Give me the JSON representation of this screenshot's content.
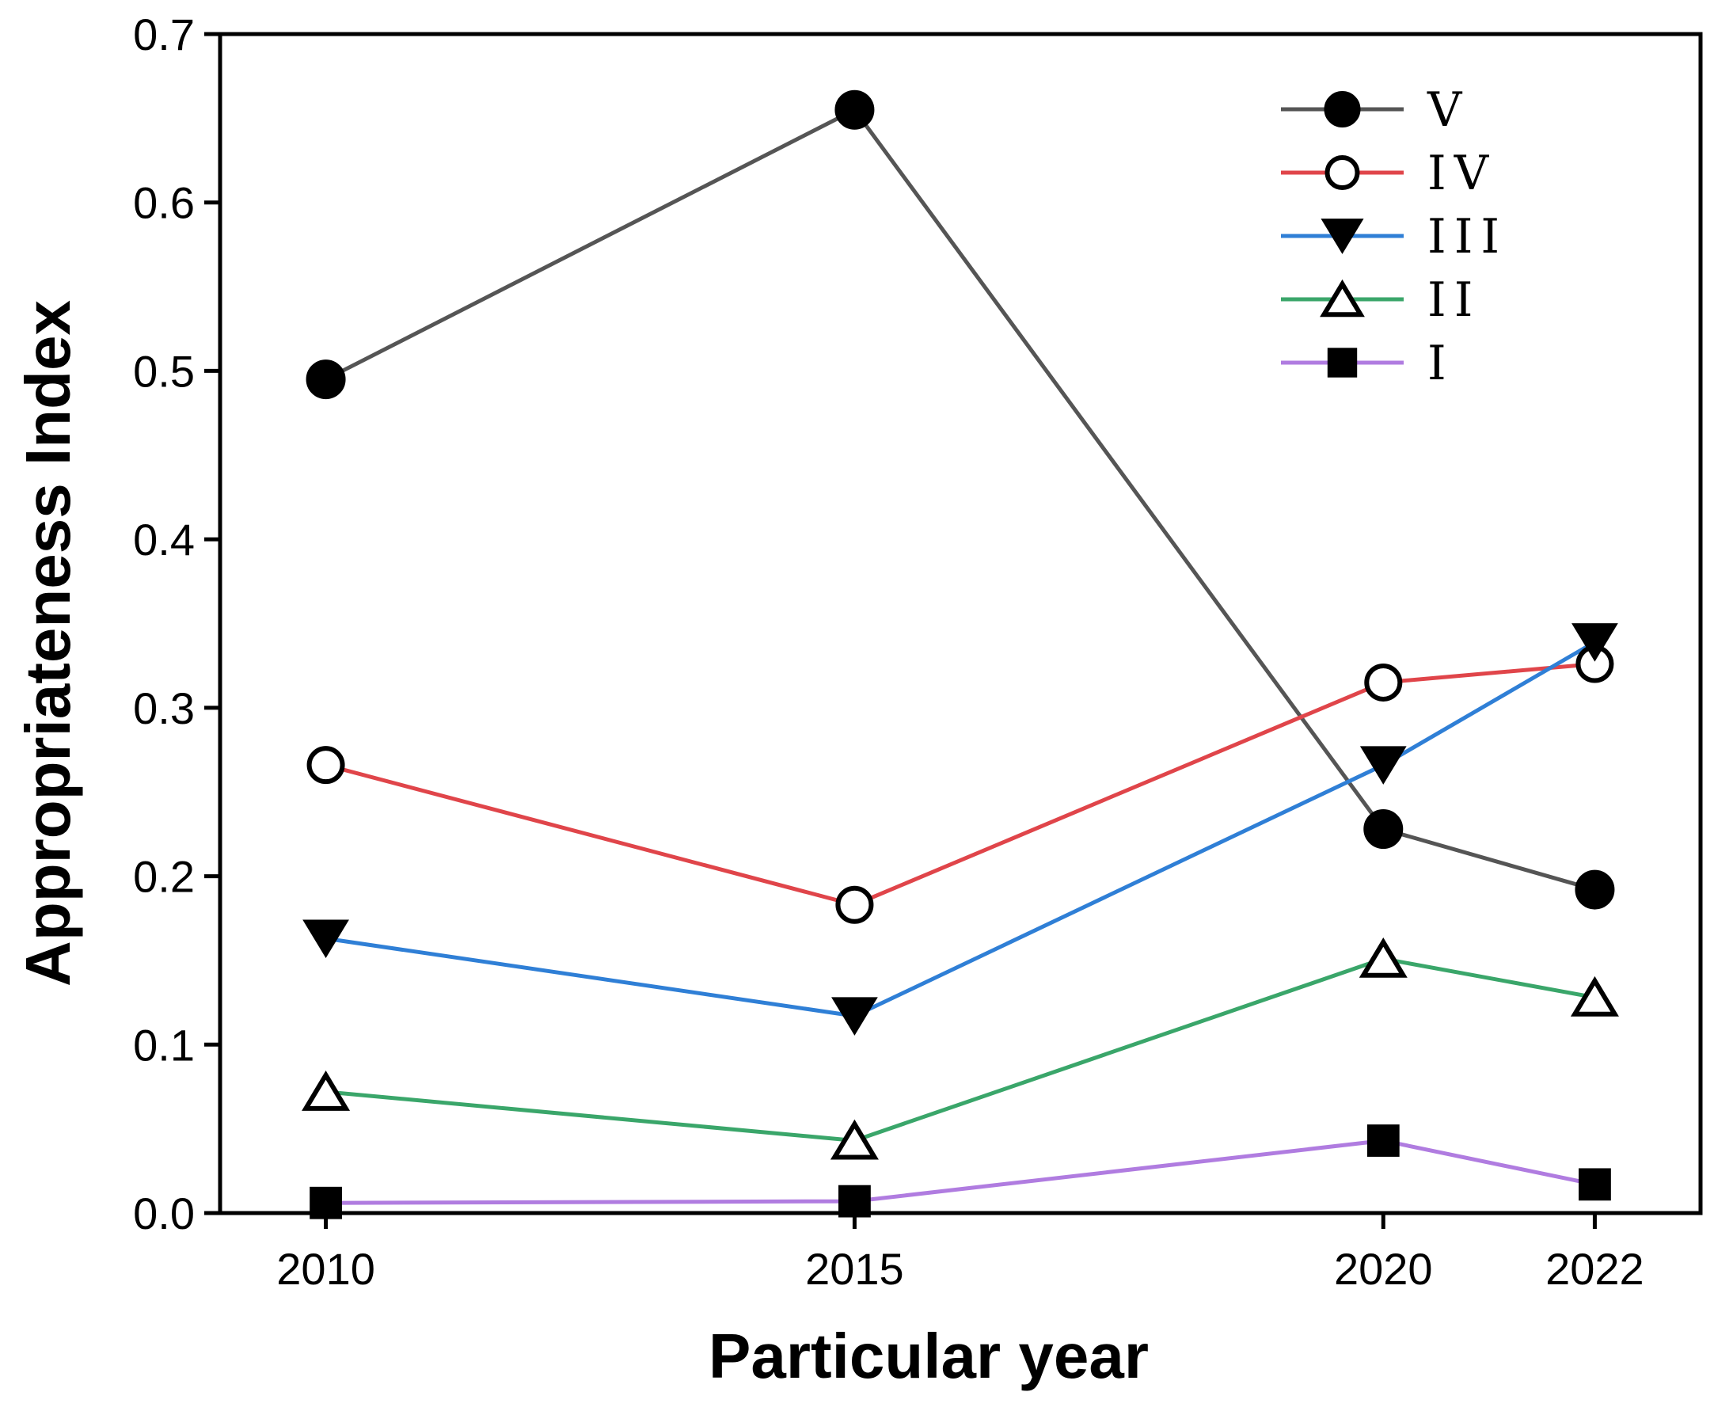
{
  "chart_data": {
    "type": "line",
    "title": "",
    "xlabel": "Particular year",
    "ylabel": "Appropriateness Index",
    "x": [
      2010,
      2015,
      2020,
      2022
    ],
    "x_tick_labels": [
      "2010",
      "2015",
      "2020",
      "2022"
    ],
    "xlim": [
      2009,
      2023
    ],
    "ylim": [
      0,
      0.7
    ],
    "y_ticks": [
      0.0,
      0.1,
      0.2,
      0.3,
      0.4,
      0.5,
      0.6,
      0.7
    ],
    "y_tick_labels": [
      "0.0",
      "0.1",
      "0.2",
      "0.3",
      "0.4",
      "0.5",
      "0.6",
      "0.7"
    ],
    "grid": false,
    "legend_position": "top-right",
    "series": [
      {
        "name": "V",
        "key": "v",
        "color": "#555555",
        "marker": "circle-filled",
        "values": [
          0.495,
          0.655,
          0.228,
          0.192
        ]
      },
      {
        "name": "IV",
        "key": "iv",
        "color": "#e0454a",
        "marker": "circle-open",
        "values": [
          0.266,
          0.183,
          0.315,
          0.326
        ]
      },
      {
        "name": "III",
        "key": "iii",
        "color": "#2f7fd6",
        "marker": "triangle-down-filled",
        "values": [
          0.163,
          0.117,
          0.266,
          0.339
        ]
      },
      {
        "name": "II",
        "key": "ii",
        "color": "#3aa66a",
        "marker": "triangle-up-open",
        "values": [
          0.072,
          0.043,
          0.151,
          0.128
        ]
      },
      {
        "name": "I",
        "key": "i",
        "color": "#b07ce0",
        "marker": "square-filled",
        "values": [
          0.006,
          0.007,
          0.043,
          0.017
        ]
      }
    ]
  }
}
